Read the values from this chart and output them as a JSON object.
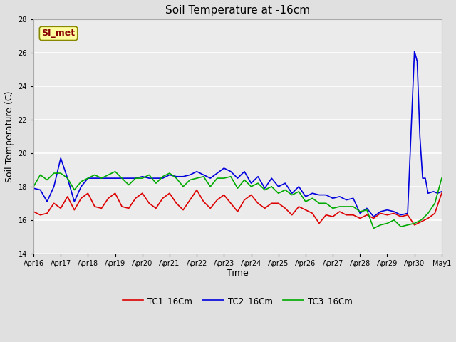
{
  "title": "Soil Temperature at -16cm",
  "xlabel": "Time",
  "ylabel": "Soil Temperature (C)",
  "ylim": [
    14,
    28
  ],
  "yticks": [
    14,
    16,
    18,
    20,
    22,
    24,
    26,
    28
  ],
  "fig_bg": "#e0e0e0",
  "plot_bg": "#ebebeb",
  "annotation_text": "SI_met",
  "annotation_bg": "#ffffa0",
  "annotation_border": "#888800",
  "annotation_text_color": "#880000",
  "legend_labels": [
    "TC1_16Cm",
    "TC2_16Cm",
    "TC3_16Cm"
  ],
  "legend_colors": [
    "#dd0000",
    "#0000dd",
    "#00aa00"
  ],
  "x_tick_labels": [
    "Apr 16",
    "Apr 17",
    "Apr 18",
    "Apr 19",
    "Apr 20",
    "Apr 21",
    "Apr 22",
    "Apr 23",
    "Apr 24",
    "Apr 25",
    "Apr 26",
    "Apr 27",
    "Apr 28",
    "Apr 29",
    "Apr 30",
    "May 1"
  ],
  "TC1_x": [
    0,
    0.25,
    0.5,
    0.75,
    1,
    1.25,
    1.5,
    1.75,
    2,
    2.25,
    2.5,
    2.75,
    3,
    3.25,
    3.5,
    3.75,
    4,
    4.25,
    4.5,
    4.75,
    5,
    5.25,
    5.5,
    5.75,
    6,
    6.25,
    6.5,
    6.75,
    7,
    7.25,
    7.5,
    7.75,
    8,
    8.25,
    8.5,
    8.75,
    9,
    9.25,
    9.5,
    9.75,
    10,
    10.25,
    10.5,
    10.75,
    11,
    11.25,
    11.5,
    11.75,
    12,
    12.25,
    12.5,
    12.75,
    13,
    13.25,
    13.5,
    13.75,
    14,
    14.25,
    14.5,
    14.75,
    15
  ],
  "TC1_y": [
    16.5,
    16.3,
    16.4,
    17.0,
    16.7,
    17.4,
    16.6,
    17.3,
    17.6,
    16.8,
    16.7,
    17.3,
    17.6,
    16.8,
    16.7,
    17.3,
    17.6,
    17.0,
    16.7,
    17.3,
    17.6,
    17.0,
    16.6,
    17.2,
    17.8,
    17.1,
    16.7,
    17.2,
    17.5,
    17.0,
    16.5,
    17.2,
    17.5,
    17.0,
    16.7,
    17.0,
    17.0,
    16.7,
    16.3,
    16.8,
    16.6,
    16.4,
    15.8,
    16.3,
    16.2,
    16.5,
    16.3,
    16.3,
    16.1,
    16.3,
    16.1,
    16.4,
    16.3,
    16.4,
    16.2,
    16.3,
    15.7,
    15.9,
    16.1,
    16.4,
    17.6
  ],
  "TC2_x": [
    0,
    0.25,
    0.5,
    0.75,
    1,
    1.25,
    1.5,
    1.75,
    2,
    2.25,
    2.5,
    2.75,
    3,
    3.25,
    3.5,
    3.75,
    4,
    4.25,
    4.5,
    4.75,
    5,
    5.25,
    5.5,
    5.75,
    6,
    6.25,
    6.5,
    6.75,
    7,
    7.25,
    7.5,
    7.75,
    8,
    8.25,
    8.5,
    8.75,
    9,
    9.25,
    9.5,
    9.75,
    10,
    10.25,
    10.5,
    10.75,
    11,
    11.25,
    11.5,
    11.75,
    12,
    12.25,
    12.5,
    12.75,
    13,
    13.25,
    13.5,
    13.75,
    14,
    14.1,
    14.2,
    14.3,
    14.4,
    14.5,
    14.7,
    14.85,
    15
  ],
  "TC2_y": [
    17.9,
    17.8,
    17.1,
    18.0,
    19.7,
    18.5,
    17.1,
    18.0,
    18.5,
    18.5,
    18.5,
    18.5,
    18.5,
    18.5,
    18.5,
    18.5,
    18.6,
    18.5,
    18.5,
    18.5,
    18.7,
    18.6,
    18.6,
    18.7,
    18.9,
    18.7,
    18.5,
    18.8,
    19.1,
    18.9,
    18.5,
    18.9,
    18.2,
    18.6,
    17.9,
    18.5,
    18.0,
    18.2,
    17.6,
    18.0,
    17.4,
    17.6,
    17.5,
    17.5,
    17.3,
    17.4,
    17.2,
    17.3,
    16.4,
    16.7,
    16.2,
    16.5,
    16.6,
    16.5,
    16.3,
    16.4,
    26.1,
    25.5,
    21.0,
    18.5,
    18.5,
    17.6,
    17.7,
    17.6,
    17.7
  ],
  "TC3_x": [
    0,
    0.25,
    0.5,
    0.75,
    1,
    1.25,
    1.5,
    1.75,
    2,
    2.25,
    2.5,
    2.75,
    3,
    3.25,
    3.5,
    3.75,
    4,
    4.25,
    4.5,
    4.75,
    5,
    5.25,
    5.5,
    5.75,
    6,
    6.25,
    6.5,
    6.75,
    7,
    7.25,
    7.5,
    7.75,
    8,
    8.25,
    8.5,
    8.75,
    9,
    9.25,
    9.5,
    9.75,
    10,
    10.25,
    10.5,
    10.75,
    11,
    11.25,
    11.5,
    11.75,
    12,
    12.25,
    12.5,
    12.75,
    13,
    13.25,
    13.5,
    13.75,
    14,
    14.25,
    14.5,
    14.75,
    15
  ],
  "TC3_y": [
    18.0,
    18.7,
    18.4,
    18.8,
    18.8,
    18.5,
    17.8,
    18.3,
    18.5,
    18.7,
    18.5,
    18.7,
    18.9,
    18.5,
    18.1,
    18.5,
    18.5,
    18.7,
    18.2,
    18.6,
    18.8,
    18.5,
    18.0,
    18.4,
    18.5,
    18.6,
    18.0,
    18.5,
    18.5,
    18.6,
    17.9,
    18.4,
    18.0,
    18.2,
    17.8,
    18.0,
    17.6,
    17.8,
    17.5,
    17.7,
    17.1,
    17.3,
    17.0,
    17.0,
    16.7,
    16.8,
    16.8,
    16.8,
    16.5,
    16.6,
    15.5,
    15.7,
    15.8,
    16.0,
    15.6,
    15.7,
    15.8,
    16.0,
    16.4,
    17.0,
    18.5
  ]
}
